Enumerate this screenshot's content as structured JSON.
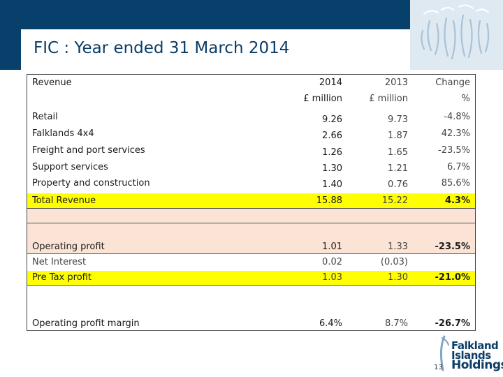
{
  "slide": {
    "title": "FIC : Year ended 31 March 2014",
    "page_number": "13"
  },
  "logo": {
    "line1": "Falkland",
    "line2": "Islands",
    "line3": "Holdings"
  },
  "table": {
    "header": {
      "section_label": "Revenue",
      "col_2014_line1": "2014",
      "col_2014_line2": "£ million",
      "col_2013_line1": "2013",
      "col_2013_line2": "£ million",
      "col_change_line1": "Change",
      "col_change_line2": "%"
    },
    "revenue_rows": [
      {
        "label": "Retail",
        "v2014": "9.26",
        "v2013": "9.73",
        "change": "-4.8%"
      },
      {
        "label": "Falklands 4x4",
        "v2014": "2.66",
        "v2013": "1.87",
        "change": "42.3%"
      },
      {
        "label": "Freight and port services",
        "v2014": "1.26",
        "v2013": "1.65",
        "change": "-23.5%"
      },
      {
        "label": "Support services",
        "v2014": "1.30",
        "v2013": "1.21",
        "change": "6.7%"
      },
      {
        "label": "Property and construction",
        "v2014": "1.40",
        "v2013": "0.76",
        "change": "85.6%"
      }
    ],
    "total_revenue": {
      "label": "Total Revenue",
      "v2014": "15.88",
      "v2013": "15.22",
      "change": "4.3%"
    },
    "operating_profit": {
      "label": "Operating profit",
      "v2014": "1.01",
      "v2013": "1.33",
      "change": "-23.5%"
    },
    "net_interest": {
      "label": "Net Interest",
      "v2014": "0.02",
      "v2013": "(0.03)",
      "change": ""
    },
    "pre_tax_profit": {
      "label": "Pre Tax profit",
      "v2014": "1.03",
      "v2013": "1.30",
      "change": "-21.0%"
    },
    "operating_margin": {
      "label": "Operating profit margin",
      "v2014": "6.4%",
      "v2013": "8.7%",
      "change": "-26.7%"
    }
  },
  "colors": {
    "header_band": "#07406b",
    "title_text": "#0b3d66",
    "highlight_yellow": "#ffff00",
    "highlight_peach": "#fbe4d5"
  }
}
